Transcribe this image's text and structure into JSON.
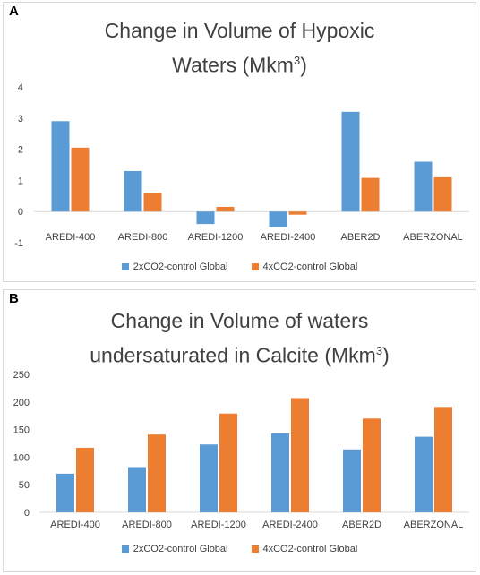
{
  "panels": [
    {
      "letter": "A",
      "title_main": "Change in Volume of Hypoxic",
      "title_line2": "Waters (Mkm",
      "title_sup": "3",
      "title_close": ")"
    },
    {
      "letter": "B",
      "title_main": "Change in Volume of waters",
      "title_line2": "undersaturated in Calcite (Mkm",
      "title_sup": "3",
      "title_close": ")"
    }
  ],
  "colors": {
    "series1": "#5b9bd5",
    "series2": "#ed7d31",
    "zero_line": "#d9d9d9"
  },
  "chart_data": [
    {
      "type": "bar",
      "title": "Change in Volume of Hypoxic Waters (Mkm3)",
      "categories": [
        "AREDI-400",
        "AREDI-800",
        "AREDI-1200",
        "AREDI-2400",
        "ABER2D",
        "ABERZONAL"
      ],
      "series": [
        {
          "name": "2xCO2-control Global",
          "values": [
            2.9,
            1.3,
            -0.4,
            -0.5,
            3.2,
            1.6
          ]
        },
        {
          "name": "4xCO2-control Global",
          "values": [
            2.05,
            0.6,
            0.15,
            -0.1,
            1.08,
            1.1
          ]
        }
      ],
      "ylim": [
        -1,
        4
      ],
      "yticks": [
        -1,
        0,
        1,
        2,
        3,
        4
      ],
      "grid": false,
      "legend": "bottom"
    },
    {
      "type": "bar",
      "title": "Change in Volume of waters undersaturated in Calcite (Mkm3)",
      "categories": [
        "AREDI-400",
        "AREDI-800",
        "AREDI-1200",
        "AREDI-2400",
        "ABER2D",
        "ABERZONAL"
      ],
      "series": [
        {
          "name": "2xCO2-control Global",
          "values": [
            70,
            82,
            123,
            143,
            114,
            137
          ]
        },
        {
          "name": "4xCO2-control Global",
          "values": [
            117,
            141,
            179,
            207,
            170,
            191
          ]
        }
      ],
      "ylim": [
        0,
        250
      ],
      "yticks": [
        0,
        50,
        100,
        150,
        200,
        250
      ],
      "grid": false,
      "legend": "bottom"
    }
  ]
}
